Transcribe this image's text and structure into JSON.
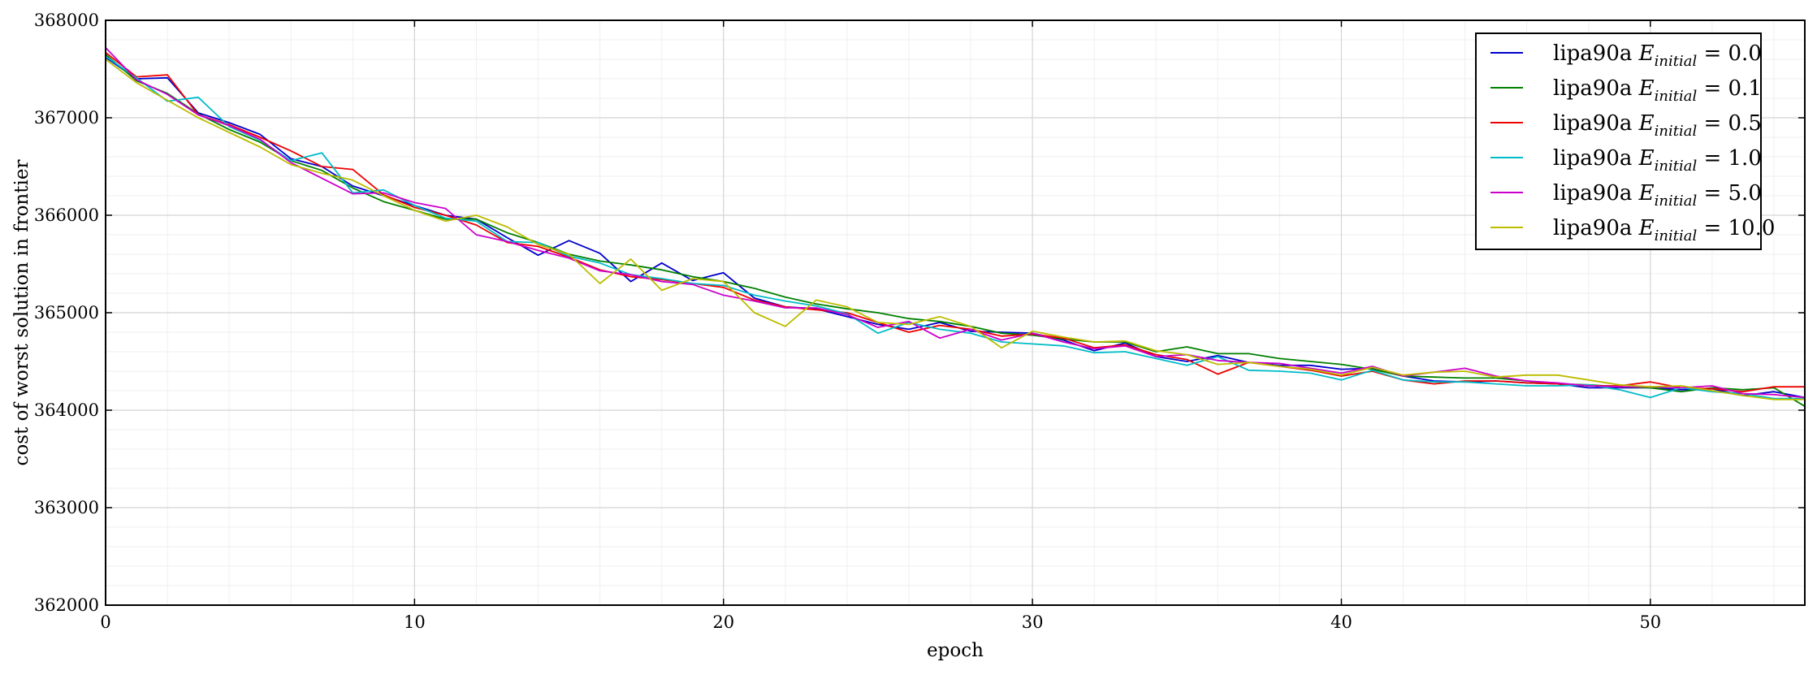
{
  "chart_data": {
    "type": "line",
    "title": "",
    "xlabel": "epoch",
    "ylabel": "cost of worst solution in frontier",
    "xlim": [
      0,
      55
    ],
    "ylim": [
      362000,
      368000
    ],
    "xticks": [
      0,
      10,
      20,
      30,
      40,
      50
    ],
    "yticks": [
      362000,
      363000,
      364000,
      365000,
      366000,
      367000,
      368000
    ],
    "xtick_labels": [
      "0",
      "10",
      "20",
      "30",
      "40",
      "50"
    ],
    "ytick_labels": [
      "362000",
      "363000",
      "364000",
      "365000",
      "366000",
      "367000",
      "368000"
    ],
    "grid": true,
    "legend_position": "top-right",
    "x": [
      0,
      1,
      2,
      3,
      4,
      5,
      6,
      7,
      8,
      9,
      10,
      11,
      12,
      13,
      14,
      15,
      16,
      17,
      18,
      19,
      20,
      21,
      22,
      23,
      24,
      25,
      26,
      27,
      28,
      29,
      30,
      31,
      32,
      33,
      34,
      35,
      36,
      37,
      38,
      39,
      40,
      41,
      42,
      43,
      44,
      45,
      46,
      47,
      48,
      49,
      50,
      51,
      52,
      53,
      54,
      55
    ],
    "series": [
      {
        "name": "lipa90a E_initial = 0.0",
        "legend": {
          "prefix": "lipa90a",
          "var": "E",
          "sub": "initial",
          "eq": "= 0.0"
        },
        "color": "#0000cc",
        "values": [
          367620,
          367400,
          367410,
          367050,
          366950,
          366830,
          366580,
          366500,
          366300,
          366200,
          366100,
          366000,
          365960,
          365770,
          365590,
          365740,
          365610,
          365320,
          365510,
          365330,
          365410,
          365150,
          365060,
          365040,
          364960,
          364880,
          364830,
          364900,
          364810,
          364800,
          364790,
          364720,
          364610,
          364690,
          364550,
          364500,
          364560,
          364490,
          364460,
          364460,
          364420,
          364430,
          364350,
          364300,
          364290,
          364300,
          364280,
          364270,
          364230,
          364230,
          364230,
          364210,
          364220,
          364150,
          364190,
          364130
        ]
      },
      {
        "name": "lipa90a E_initial = 0.1",
        "legend": {
          "prefix": "lipa90a",
          "var": "E",
          "sub": "initial",
          "eq": "= 0.1"
        },
        "color": "#008000",
        "values": [
          367650,
          367380,
          367250,
          367040,
          366880,
          366750,
          366560,
          366460,
          366280,
          366140,
          366050,
          365960,
          365960,
          365820,
          365720,
          365600,
          365530,
          365490,
          365440,
          365370,
          365320,
          365250,
          365160,
          365090,
          365040,
          365000,
          364940,
          364910,
          364860,
          364790,
          364770,
          364730,
          364700,
          364700,
          364600,
          364650,
          364580,
          364580,
          364530,
          364500,
          364470,
          364420,
          364350,
          364340,
          364330,
          364330,
          364300,
          364270,
          364260,
          364240,
          364230,
          364190,
          364230,
          364210,
          364230,
          364040
        ]
      },
      {
        "name": "lipa90a E_initial = 0.5",
        "legend": {
          "prefix": "lipa90a",
          "var": "E",
          "sub": "initial",
          "eq": "= 0.5"
        },
        "color": "#ee0000",
        "values": [
          367670,
          367420,
          367440,
          367030,
          366930,
          366800,
          366660,
          366500,
          366470,
          366210,
          366080,
          366000,
          365900,
          365720,
          365680,
          365570,
          365440,
          365370,
          365340,
          365300,
          365260,
          365130,
          365060,
          365030,
          365000,
          364900,
          364800,
          364870,
          364830,
          364760,
          364780,
          364740,
          364640,
          364670,
          364570,
          364520,
          364370,
          364490,
          364450,
          364410,
          364350,
          364400,
          364310,
          364270,
          364300,
          364300,
          364280,
          364270,
          364250,
          364250,
          364290,
          364230,
          364220,
          364190,
          364240,
          364240
        ]
      },
      {
        "name": "lipa90a E_initial = 1.0",
        "legend": {
          "prefix": "lipa90a",
          "var": "E",
          "sub": "initial",
          "eq": "= 1.0"
        },
        "color": "#00bcc8",
        "values": [
          367630,
          367410,
          367170,
          367210,
          366910,
          366770,
          366560,
          366640,
          366230,
          366260,
          366100,
          365970,
          365940,
          365730,
          365720,
          365580,
          365510,
          365390,
          365350,
          365300,
          365280,
          365180,
          365120,
          365070,
          364990,
          364790,
          364900,
          364830,
          364790,
          364700,
          364680,
          364660,
          364590,
          364600,
          364530,
          364460,
          364550,
          364410,
          364400,
          364380,
          364310,
          364410,
          364310,
          364290,
          364290,
          364270,
          364250,
          364250,
          364260,
          364210,
          364130,
          364230,
          364190,
          364170,
          364120,
          364120
        ]
      },
      {
        "name": "lipa90a E_initial = 5.0",
        "legend": {
          "prefix": "lipa90a",
          "var": "E",
          "sub": "initial",
          "eq": "= 5.0"
        },
        "color": "#cc00cc",
        "values": [
          367720,
          367390,
          367240,
          367030,
          366920,
          366780,
          366540,
          366380,
          366220,
          366230,
          366130,
          366070,
          365800,
          365730,
          365640,
          365560,
          365430,
          365390,
          365320,
          365290,
          365180,
          365120,
          365050,
          365050,
          364980,
          364850,
          364910,
          364740,
          364830,
          364720,
          364790,
          364700,
          364630,
          364660,
          364550,
          364570,
          364510,
          364490,
          364480,
          364430,
          364380,
          364450,
          364350,
          364390,
          364430,
          364350,
          364300,
          364280,
          364250,
          364240,
          364240,
          364230,
          364250,
          364170,
          364160,
          364130
        ]
      },
      {
        "name": "lipa90a E_initial = 10.0",
        "legend": {
          "prefix": "lipa90a",
          "var": "E",
          "sub": "initial",
          "eq": "= 10.0"
        },
        "color": "#bcbc00",
        "values": [
          367600,
          367360,
          367180,
          367000,
          366850,
          366700,
          366520,
          366430,
          366360,
          366200,
          366050,
          365940,
          366000,
          365880,
          365700,
          365600,
          365300,
          365550,
          365230,
          365350,
          365320,
          365000,
          364860,
          365130,
          365060,
          364900,
          364880,
          364960,
          364860,
          364640,
          364810,
          364750,
          364700,
          364710,
          364610,
          364570,
          364470,
          364490,
          364450,
          364420,
          364360,
          364440,
          364360,
          364390,
          364400,
          364340,
          364360,
          364360,
          364310,
          364260,
          364240,
          364250,
          364200,
          364150,
          364110,
          364110
        ]
      }
    ]
  }
}
